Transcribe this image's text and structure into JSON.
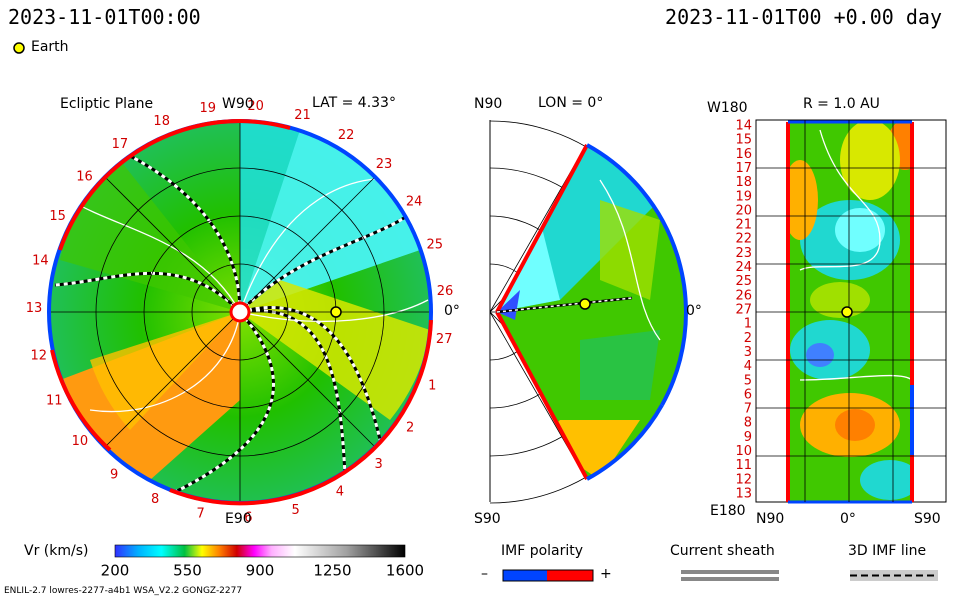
{
  "header": {
    "time_left": "2023-11-01T00:00",
    "time_right": "2023-11-01T00 +0.00 day",
    "legend_label": "Earth"
  },
  "panels": {
    "ecliptic": {
      "title": "Ecliptic Plane",
      "top_label": "W90",
      "lat": "LAT = 4.33°",
      "bottom_label": "E90",
      "right_label": "0°"
    },
    "meridional": {
      "top_left": "N90",
      "lon": "LON = 0°",
      "bottom_left": "S90",
      "right_label": "0°"
    },
    "synoptic": {
      "top_left": "W180",
      "r_label": "R = 1.0 AU",
      "bottom_left": "E180",
      "x_left": "N90",
      "x_mid": "0°",
      "x_right": "S90"
    }
  },
  "colorbar": {
    "label": "Vr (km/s)",
    "ticks": [
      "200",
      "550",
      "900",
      "1250",
      "1600"
    ]
  },
  "imf": {
    "label": "IMF polarity",
    "minus": "–",
    "plus": "+"
  },
  "sheath": {
    "label": "Current sheath"
  },
  "imf3d": {
    "label": "3D IMF line"
  },
  "footer": {
    "left": "ENLIL-2.7 lowres-2277-a4b1 WSA_V2.2 GONGZ-2277"
  },
  "carrington_ring": [
    "19",
    "20",
    "21",
    "22",
    "23",
    "24",
    "25",
    "26",
    "27",
    "1",
    "2",
    "3",
    "4",
    "5",
    "6",
    "7",
    "8",
    "9",
    "10",
    "11",
    "12",
    "13",
    "14",
    "15",
    "16",
    "17",
    "18"
  ],
  "synoptic_rows": [
    "14",
    "15",
    "16",
    "17",
    "18",
    "19",
    "20",
    "21",
    "22",
    "23",
    "24",
    "25",
    "26",
    "27",
    "1",
    "2",
    "3",
    "4",
    "5",
    "6",
    "7",
    "8",
    "9",
    "10",
    "11",
    "12",
    "13"
  ],
  "colors": {
    "positive": "#ff0000",
    "negative": "#0044ff",
    "carrington": "#d00000"
  },
  "chart_data": {
    "type": "heatmap",
    "title": "Ecliptic Plane",
    "quantity": "Vr (km/s)",
    "scale_range": [
      200,
      1600
    ],
    "colorbar_ticks": [
      200,
      550,
      900,
      1250,
      1600
    ]
  }
}
